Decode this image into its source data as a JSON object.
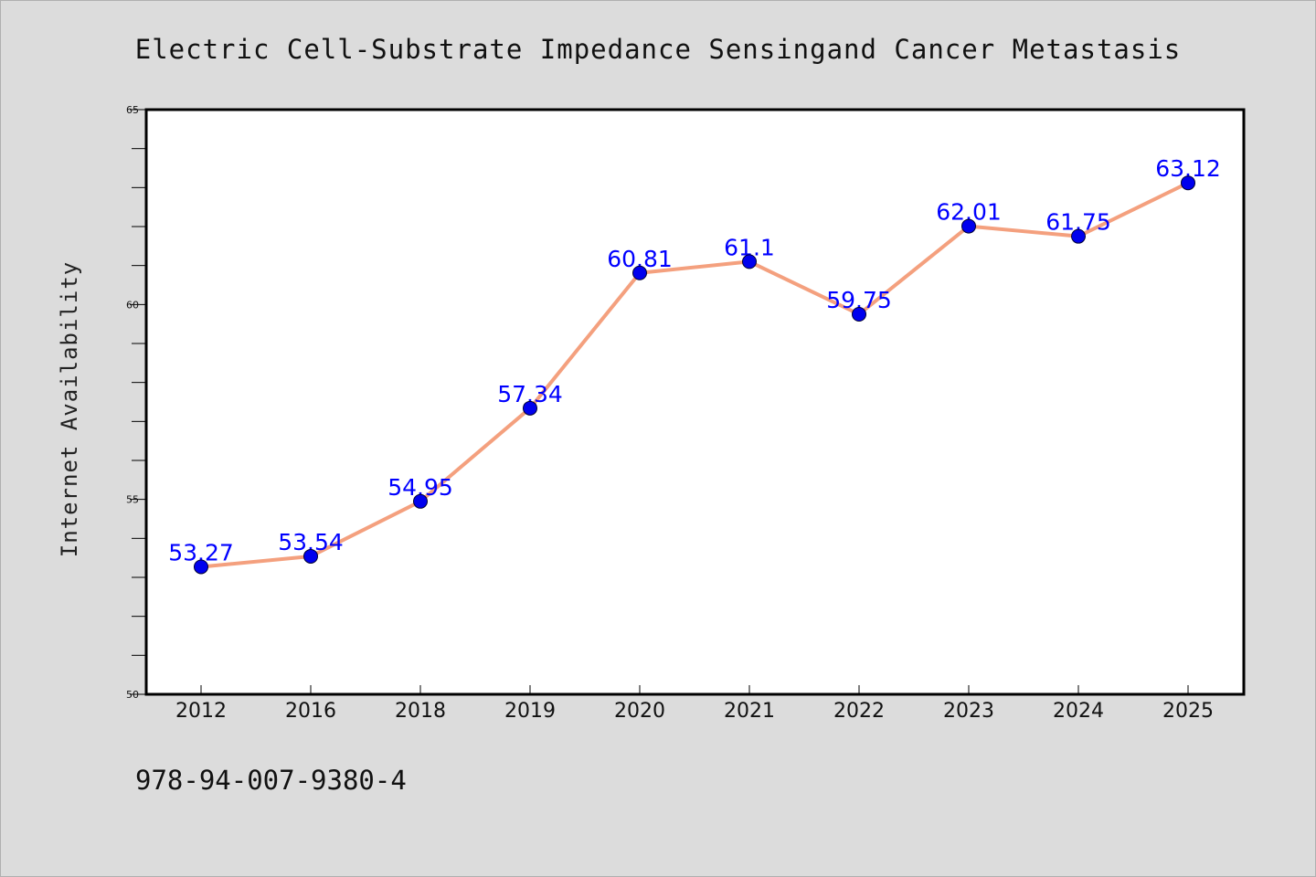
{
  "chart_data": {
    "type": "line",
    "title": "Electric Cell-Substrate Impedance Sensingand Cancer Metastasis",
    "xlabel": "",
    "ylabel": "Internet Availability",
    "categories": [
      "2012",
      "2016",
      "2018",
      "2019",
      "2020",
      "2021",
      "2022",
      "2023",
      "2024",
      "2025"
    ],
    "series": [
      {
        "values": [
          53.27,
          53.54,
          54.95,
          57.34,
          60.81,
          61.1,
          59.75,
          62.01,
          61.75,
          63.12
        ],
        "value_labels": [
          "53.27",
          "53.54",
          "54.95",
          "57.34",
          "60.81",
          "61.1",
          "59.75",
          "62.01",
          "61.75",
          "63.12"
        ]
      }
    ],
    "ylim": [
      50,
      65
    ],
    "yticks": [
      "50",
      "55",
      "60",
      "65"
    ],
    "grid": false,
    "legend": "none",
    "colors": {
      "line": "#f4a07e",
      "marker": "#0000ee",
      "label": "#0000ff",
      "background": "#dcdcdc",
      "plot_background": "#ffffff"
    }
  },
  "footer": {
    "isbn": "978-94-007-9380-4"
  }
}
